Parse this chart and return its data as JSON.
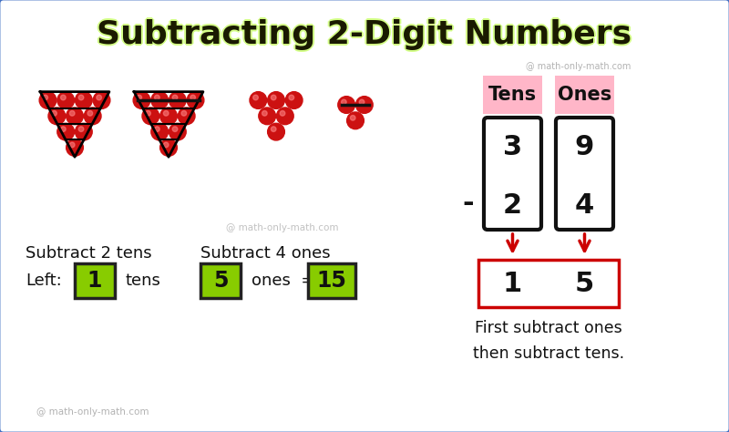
{
  "title": "Subtracting 2-Digit Numbers",
  "title_color": "#1a1a00",
  "title_fontsize": 26,
  "bg_color": "#ffffff",
  "border_color": "#4472c4",
  "watermark": "@ math-only-math.com",
  "tens_label": "Tens",
  "ones_label": "Ones",
  "header_bg": "#ffb6c8",
  "tens_top": "3",
  "tens_bottom": "2",
  "ones_top": "9",
  "ones_bottom": "4",
  "result_tens": "1",
  "result_ones": "5",
  "subtract_sign": "-",
  "left_text1": "Subtract 2 tens",
  "left_text2": "Left:",
  "left_val": "1",
  "left_text3": "tens",
  "right_text1": "Subtract 4 ones",
  "right_val": "5",
  "right_text2": "ones  =",
  "right_val2": "15",
  "green_box_color": "#88cc00",
  "arrow_color": "#cc0000",
  "result_border_color": "#cc0000",
  "box_border_color": "#111111",
  "footer_text": "First subtract ones\nthen subtract tens.",
  "footer_color": "#111111",
  "ball_color": "#cc1111",
  "ball_highlight": "#ff8888",
  "title_glow": "#d4ff88"
}
